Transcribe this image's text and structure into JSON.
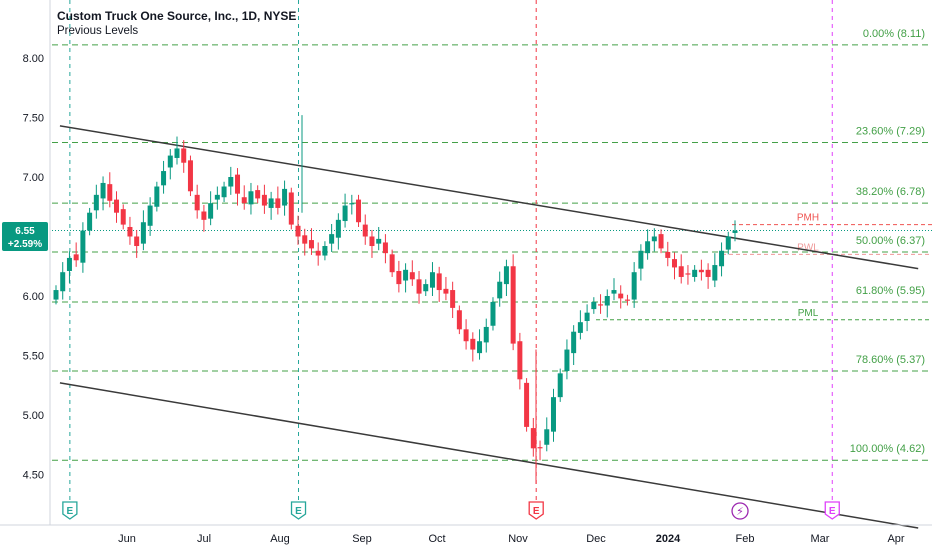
{
  "header": {
    "title": "Custom Truck One Source, Inc., 1D, NYSE",
    "subtitle": "Previous Levels"
  },
  "price_tag": {
    "price": "6.55",
    "change": "+2.59%",
    "color": "#089981"
  },
  "colors": {
    "up": "#089981",
    "down": "#f23645",
    "fib": "#43a047",
    "pmh": "#ef5350",
    "pwl": "#ef9a9a",
    "earnings": "#26a69a",
    "earnings_red": "#f23645",
    "earnings_pink": "#e040fb",
    "dividend": "#9c27b0"
  },
  "chart_data": {
    "type": "candlestick",
    "title": "Custom Truck One Source, Inc., 1D, NYSE",
    "y_ticks": [
      "8.00",
      "7.50",
      "7.00",
      "6.50",
      "6.00",
      "5.50",
      "5.00",
      "4.50"
    ],
    "ylim": [
      4.38,
      8.4
    ],
    "x_ticks": [
      "Jun",
      "Jul",
      "Aug",
      "Sep",
      "Oct",
      "Nov",
      "Dec",
      "2024",
      "Feb",
      "Mar",
      "Apr"
    ],
    "fib_levels": [
      {
        "label": "0.00% (8.11)",
        "value": 8.11
      },
      {
        "label": "23.60% (7.29)",
        "value": 7.29
      },
      {
        "label": "38.20% (6.78)",
        "value": 6.78
      },
      {
        "label": "50.00% (6.37)",
        "value": 6.37
      },
      {
        "label": "61.80% (5.95)",
        "value": 5.95
      },
      {
        "label": "78.60% (5.37)",
        "value": 5.37
      },
      {
        "label": "100.00% (4.62)",
        "value": 4.62
      }
    ],
    "previous_levels": [
      {
        "label": "PMH",
        "value": 6.6
      },
      {
        "label": "PWL",
        "value": 6.35
      },
      {
        "label": "PML",
        "value": 5.8
      }
    ],
    "channel_upper": {
      "start": [
        "2023-05-05",
        7.43
      ],
      "end": [
        "2024-04-10",
        6.23
      ]
    },
    "channel_lower": {
      "start": [
        "2023-05-05",
        5.27
      ],
      "end": [
        "2024-04-10",
        4.05
      ]
    },
    "event_markers": [
      {
        "label": "E",
        "date": "2023-05-09"
      },
      {
        "label": "E",
        "date": "2023-08-08"
      },
      {
        "label": "E",
        "date": "2023-11-08"
      },
      {
        "label": "⚡",
        "date": "2024-01-30"
      },
      {
        "label": "E",
        "date": "2024-03-06"
      }
    ],
    "closes": [
      6.05,
      6.2,
      6.32,
      6.3,
      6.55,
      6.7,
      6.85,
      6.95,
      6.8,
      6.7,
      6.6,
      6.5,
      6.42,
      6.62,
      6.76,
      6.92,
      7.05,
      7.18,
      7.24,
      7.12,
      6.88,
      6.72,
      6.64,
      6.78,
      6.85,
      6.92,
      7.0,
      6.86,
      6.78,
      6.88,
      6.82,
      6.76,
      6.82,
      6.74,
      6.9,
      6.6,
      6.5,
      6.44,
      6.4,
      6.34,
      6.42,
      6.52,
      6.64,
      6.76,
      6.78,
      6.62,
      6.5,
      6.42,
      6.48,
      6.36,
      6.2,
      6.1,
      6.22,
      6.14,
      6.02,
      6.1,
      6.2,
      6.05,
      6.02,
      5.9,
      5.72,
      5.62,
      5.55,
      5.62,
      5.74,
      5.95,
      6.12,
      6.25,
      5.6,
      5.3,
      4.9,
      4.72,
      4.72,
      4.88,
      5.15,
      5.35,
      5.55,
      5.7,
      5.78,
      5.86,
      5.95,
      5.92,
      6.0,
      6.05,
      5.98,
      5.96,
      6.2,
      6.38,
      6.46,
      6.5,
      6.4,
      6.32,
      6.24,
      6.16,
      6.18,
      6.22,
      6.2,
      6.16,
      6.26,
      6.38,
      6.5,
      6.55
    ]
  }
}
